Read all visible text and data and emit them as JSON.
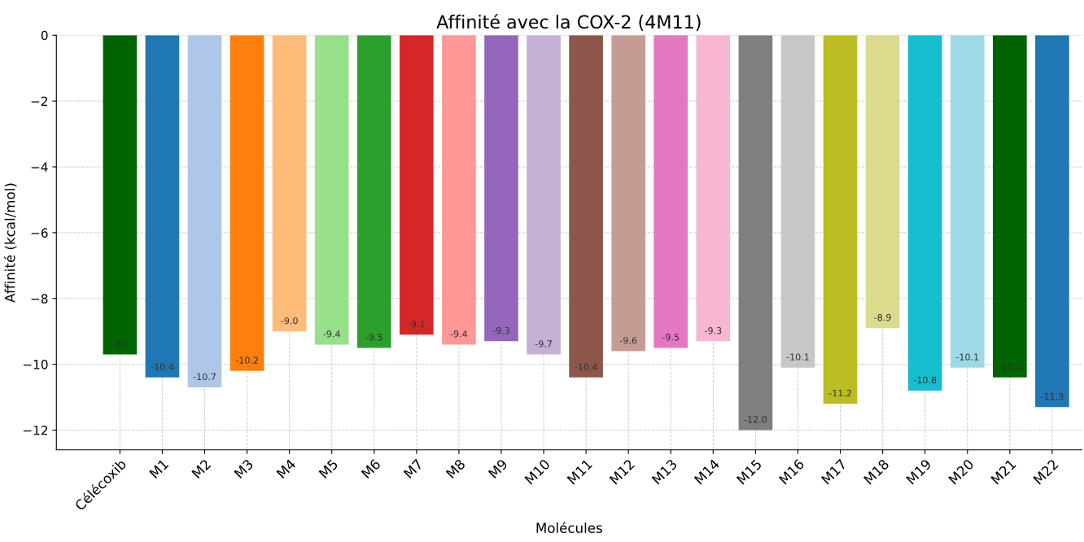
{
  "chart_data": {
    "type": "bar",
    "title": "Affinité avec la COX-2 (4M11)",
    "xlabel": "Molécules",
    "ylabel": "Affinité (kcal/mol)",
    "categories": [
      "Célécoxib",
      "M1",
      "M2",
      "M3",
      "M4",
      "M5",
      "M6",
      "M7",
      "M8",
      "M9",
      "M10",
      "M11",
      "M12",
      "M13",
      "M14",
      "M15",
      "M16",
      "M17",
      "M18",
      "M19",
      "M20",
      "M21",
      "M22"
    ],
    "values": [
      -9.7,
      -10.4,
      -10.7,
      -10.2,
      -9.0,
      -9.4,
      -9.5,
      -9.1,
      -9.4,
      -9.3,
      -9.7,
      -10.4,
      -9.6,
      -9.5,
      -9.3,
      -12.0,
      -10.1,
      -11.2,
      -8.9,
      -10.8,
      -10.1,
      -10.4,
      -11.3
    ],
    "value_labels": [
      "-9.7",
      "-10.4",
      "-10.7",
      "-10.2",
      "-9.0",
      "-9.4",
      "-9.5",
      "-9.1",
      "-9.4",
      "-9.3",
      "-9.7",
      "-10.4",
      "-9.6",
      "-9.5",
      "-9.3",
      "-12.0",
      "-10.1",
      "-11.2",
      "-8.9",
      "-10.8",
      "-10.1",
      "-10.4",
      "-11.3"
    ],
    "colors": [
      "#006400",
      "#1f77b4",
      "#aec7e8",
      "#ff7f0e",
      "#ffbb78",
      "#98df8a",
      "#2ca02c",
      "#d62728",
      "#ff9896",
      "#9467bd",
      "#c5b0d5",
      "#8c564b",
      "#c49c94",
      "#e377c2",
      "#f7b6d2",
      "#7f7f7f",
      "#c7c7c7",
      "#bcbd22",
      "#dbdb8d",
      "#17becf",
      "#9edae5",
      "#006400",
      "#1f77b4"
    ],
    "ylim": [
      -12.6,
      0
    ],
    "yticks": [
      {
        "value": 0,
        "label": "0"
      },
      {
        "value": -2,
        "label": "−2"
      },
      {
        "value": -4,
        "label": "−4"
      },
      {
        "value": -6,
        "label": "−6"
      },
      {
        "value": -8,
        "label": "−8"
      },
      {
        "value": -10,
        "label": "−10"
      },
      {
        "value": -12,
        "label": "−12"
      }
    ],
    "grid": true
  }
}
